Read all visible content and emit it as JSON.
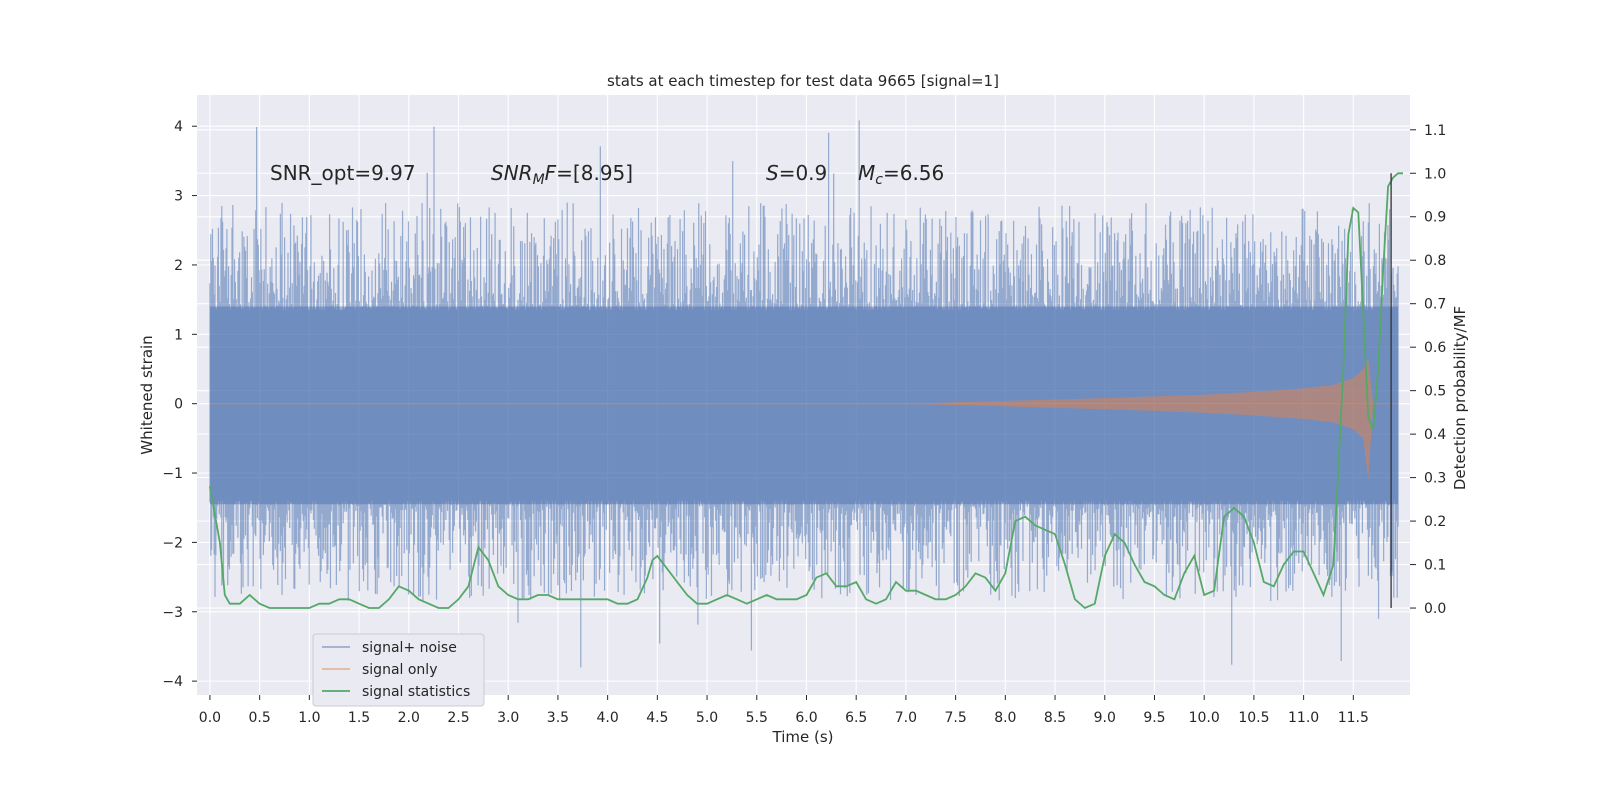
{
  "chart_data": {
    "type": "line",
    "title": "stats at each timestep for test data 9665 [signal=1]",
    "xlabel": "Time (s)",
    "ylabel_left": "Whitened strain",
    "ylabel_right": "Detection probability/MF",
    "xlim": [
      -0.13,
      12.07
    ],
    "ylim_left": [
      -4.2,
      4.45
    ],
    "ylim_right": [
      -0.2,
      1.18
    ],
    "x_ticks": [
      "0.0",
      "0.5",
      "1.0",
      "1.5",
      "2.0",
      "2.5",
      "3.0",
      "3.5",
      "4.0",
      "4.5",
      "5.0",
      "5.5",
      "6.0",
      "6.5",
      "7.0",
      "7.5",
      "8.0",
      "8.5",
      "9.0",
      "9.5",
      "10.0",
      "10.5",
      "11.0",
      "11.5"
    ],
    "y_ticks_left": [
      "−4",
      "−3",
      "−2",
      "−1",
      "0",
      "1",
      "2",
      "3",
      "4"
    ],
    "y_ticks_right": [
      "0.0",
      "0.1",
      "0.2",
      "0.3",
      "0.4",
      "0.5",
      "0.6",
      "0.7",
      "0.8",
      "0.9",
      "1.0",
      "1.1"
    ],
    "grid": true,
    "legend_position": "lower-left",
    "annotations": {
      "snr_opt": "SNR_opt=9.97",
      "snr_mf_sym": "SNR",
      "snr_mf_sub": "M",
      "snr_mf_f": "F",
      "snr_mf_val": "=[8.95]",
      "s_sym": "S",
      "s_val": "=0.9",
      "mc_sym": "M",
      "mc_sub": "c",
      "mc_val": "=6.56"
    },
    "series": [
      {
        "name": "signal+ noise",
        "color": "#4c72b0",
        "axis": "left",
        "kind": "noise band",
        "envelope_upper": 1.4,
        "envelope_lower": -1.45,
        "min": -3.85,
        "max": 4.1
      },
      {
        "name": "signal only",
        "color": "#dd8452",
        "axis": "left",
        "kind": "chirp",
        "x": [
          0.0,
          7.0,
          8.0,
          9.0,
          10.0,
          10.5,
          11.0,
          11.3,
          11.5,
          11.6,
          11.65,
          11.7
        ],
        "amplitude": [
          0.0,
          0.0,
          0.04,
          0.08,
          0.13,
          0.17,
          0.22,
          0.27,
          0.37,
          0.5,
          0.65,
          0.0
        ]
      },
      {
        "name": "signal statistics",
        "color": "#55a868",
        "axis": "right",
        "x": [
          0.0,
          0.1,
          0.15,
          0.2,
          0.3,
          0.4,
          0.5,
          0.6,
          0.7,
          0.8,
          0.9,
          1.0,
          1.1,
          1.2,
          1.3,
          1.4,
          1.5,
          1.6,
          1.7,
          1.8,
          1.9,
          2.0,
          2.1,
          2.2,
          2.3,
          2.35,
          2.4,
          2.5,
          2.6,
          2.7,
          2.8,
          2.9,
          3.0,
          3.1,
          3.2,
          3.3,
          3.4,
          3.5,
          3.6,
          3.7,
          3.8,
          3.9,
          4.0,
          4.1,
          4.2,
          4.3,
          4.4,
          4.45,
          4.5,
          4.6,
          4.7,
          4.8,
          4.9,
          5.0,
          5.1,
          5.2,
          5.3,
          5.4,
          5.5,
          5.6,
          5.7,
          5.8,
          5.9,
          6.0,
          6.1,
          6.2,
          6.3,
          6.4,
          6.5,
          6.6,
          6.7,
          6.8,
          6.9,
          7.0,
          7.1,
          7.2,
          7.3,
          7.4,
          7.5,
          7.6,
          7.7,
          7.8,
          7.9,
          8.0,
          8.1,
          8.2,
          8.3,
          8.4,
          8.5,
          8.6,
          8.7,
          8.8,
          8.9,
          9.0,
          9.1,
          9.2,
          9.3,
          9.4,
          9.5,
          9.6,
          9.7,
          9.8,
          9.9,
          10.0,
          10.1,
          10.2,
          10.3,
          10.4,
          10.5,
          10.6,
          10.7,
          10.8,
          10.9,
          11.0,
          11.1,
          11.2,
          11.3,
          11.4,
          11.45,
          11.5,
          11.55,
          11.6,
          11.65,
          11.7,
          11.75,
          11.8,
          11.85,
          11.9,
          11.95,
          12.0
        ],
        "values": [
          0.28,
          0.15,
          0.03,
          0.01,
          0.01,
          0.03,
          0.01,
          0.0,
          0.0,
          0.0,
          0.0,
          0.0,
          0.01,
          0.01,
          0.02,
          0.02,
          0.01,
          0.0,
          0.0,
          0.02,
          0.05,
          0.04,
          0.02,
          0.01,
          0.0,
          0.0,
          0.0,
          0.02,
          0.05,
          0.14,
          0.11,
          0.05,
          0.03,
          0.02,
          0.02,
          0.03,
          0.03,
          0.02,
          0.02,
          0.02,
          0.02,
          0.02,
          0.02,
          0.01,
          0.01,
          0.02,
          0.07,
          0.11,
          0.12,
          0.09,
          0.06,
          0.03,
          0.01,
          0.01,
          0.02,
          0.03,
          0.02,
          0.01,
          0.02,
          0.03,
          0.02,
          0.02,
          0.02,
          0.03,
          0.07,
          0.08,
          0.05,
          0.05,
          0.06,
          0.02,
          0.01,
          0.02,
          0.06,
          0.04,
          0.04,
          0.03,
          0.02,
          0.02,
          0.03,
          0.05,
          0.08,
          0.07,
          0.04,
          0.08,
          0.2,
          0.21,
          0.19,
          0.18,
          0.17,
          0.1,
          0.02,
          0.0,
          0.01,
          0.12,
          0.17,
          0.15,
          0.1,
          0.06,
          0.05,
          0.03,
          0.02,
          0.08,
          0.12,
          0.03,
          0.04,
          0.21,
          0.23,
          0.21,
          0.15,
          0.06,
          0.05,
          0.1,
          0.13,
          0.13,
          0.08,
          0.03,
          0.1,
          0.55,
          0.86,
          0.92,
          0.91,
          0.68,
          0.44,
          0.41,
          0.55,
          0.78,
          0.97,
          0.99,
          1.0,
          1.0
        ]
      }
    ],
    "vertical_line_x": 11.88,
    "legend": [
      "signal+ noise",
      "signal only",
      "signal statistics"
    ]
  }
}
